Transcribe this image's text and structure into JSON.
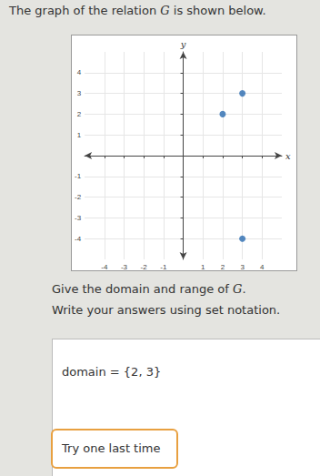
{
  "prompt": {
    "before": "The graph of the relation ",
    "variable": "G",
    "after": " is shown below."
  },
  "question": {
    "before": "Give the domain and range of ",
    "variable": "G",
    "after": "."
  },
  "instruction": "Write your answers using set notation.",
  "chart_data": {
    "type": "scatter",
    "x": [
      2,
      3,
      3
    ],
    "values": [
      2,
      3,
      -4
    ],
    "color": "#2b6cb0",
    "x_label": "x",
    "y_label": "y",
    "xlim": [
      -5,
      5
    ],
    "ylim": [
      -5,
      5
    ],
    "xticks": [
      -4,
      -3,
      -2,
      -1,
      1,
      2,
      3,
      4
    ],
    "yticks": [
      -4,
      -3,
      -2,
      -1,
      1,
      2,
      3,
      4
    ],
    "grid": true
  },
  "answer": {
    "label": "domain",
    "equals": "=",
    "value": "{2, 3}"
  },
  "button": "Try one last time"
}
